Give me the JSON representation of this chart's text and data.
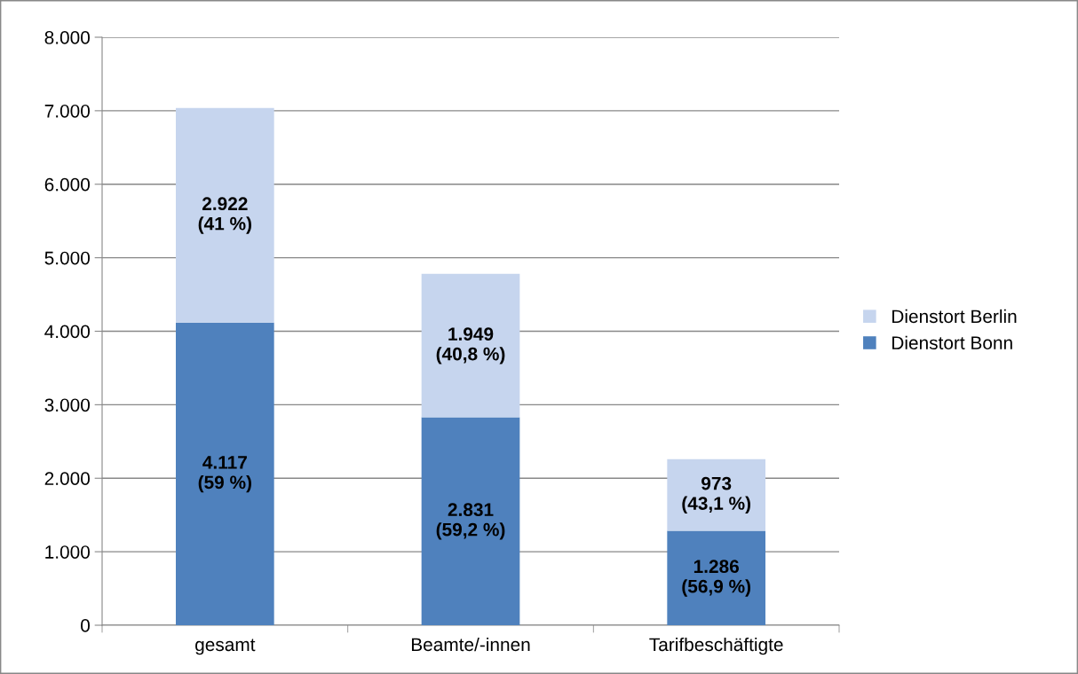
{
  "chart_data": {
    "type": "bar",
    "stacked": true,
    "categories": [
      "gesamt",
      "Beamte/-innen",
      "Tarifbeschäftigte"
    ],
    "series": [
      {
        "name": "Dienstort Bonn",
        "color": "#4f81bd",
        "values": [
          4117,
          2831,
          1286
        ],
        "value_labels": [
          "4.117\n(59 %)",
          "2.831\n(59,2 %)",
          "1.286\n(56,9 %)"
        ]
      },
      {
        "name": "Dienstort Berlin",
        "color": "#c6d5ee",
        "values": [
          2922,
          1949,
          973
        ],
        "value_labels": [
          "2.922\n(41 %)",
          "1.949\n(40,8 %)",
          "973\n(43,1 %)"
        ]
      }
    ],
    "ylim": [
      0,
      8000
    ],
    "yticks": [
      {
        "value": 0,
        "label": "0"
      },
      {
        "value": 1000,
        "label": "1.000"
      },
      {
        "value": 2000,
        "label": "2.000"
      },
      {
        "value": 3000,
        "label": "3.000"
      },
      {
        "value": 4000,
        "label": "4.000"
      },
      {
        "value": 5000,
        "label": "5.000"
      },
      {
        "value": 6000,
        "label": "6.000"
      },
      {
        "value": 7000,
        "label": "7.000"
      },
      {
        "value": 8000,
        "label": "8.000"
      }
    ],
    "grid": "y",
    "legend": "right"
  }
}
